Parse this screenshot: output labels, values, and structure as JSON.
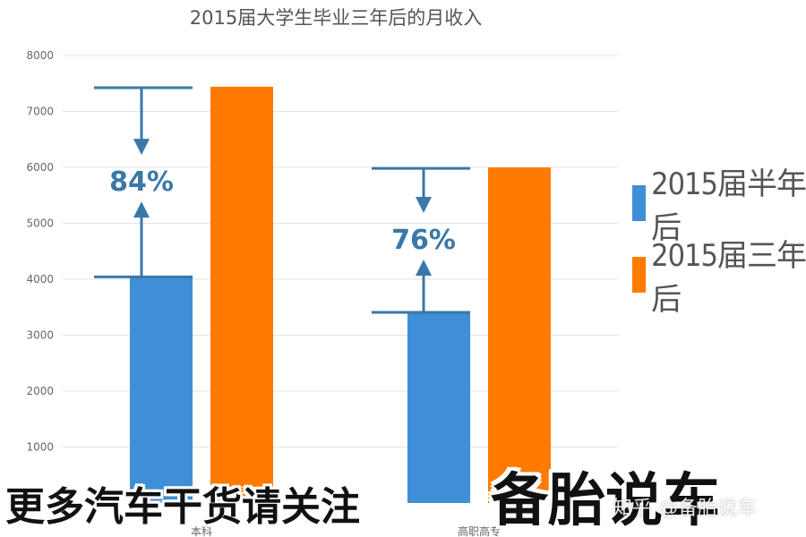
{
  "chart_data": {
    "type": "bar",
    "title": "2015届大学生毕业三年后的月收入",
    "categories": [
      "本科",
      "高职高专"
    ],
    "series": [
      {
        "name": "2015届半年后",
        "values": [
          4042,
          3409
        ],
        "color": "#3e8fd6"
      },
      {
        "name": "2015届三年后",
        "values": [
          7441,
          5999
        ],
        "color": "#ff7a00"
      }
    ],
    "ylim": [
      0,
      8000
    ],
    "yticks": [
      1000,
      2000,
      3000,
      4000,
      5000,
      6000,
      7000,
      8000
    ],
    "grid": true,
    "legend_position": "right",
    "annotations": [
      {
        "text": "84%",
        "category": "本科"
      },
      {
        "text": "76%",
        "category": "高职高专"
      }
    ]
  },
  "banner": {
    "left_text": "更多汽车干货请关注",
    "right_text": "备胎说车"
  },
  "watermark": "知乎 @备胎说车",
  "colors": {
    "annotation": "#3a78a8",
    "grid": "#e3e3e3",
    "banner_bg": "#ffffff"
  }
}
